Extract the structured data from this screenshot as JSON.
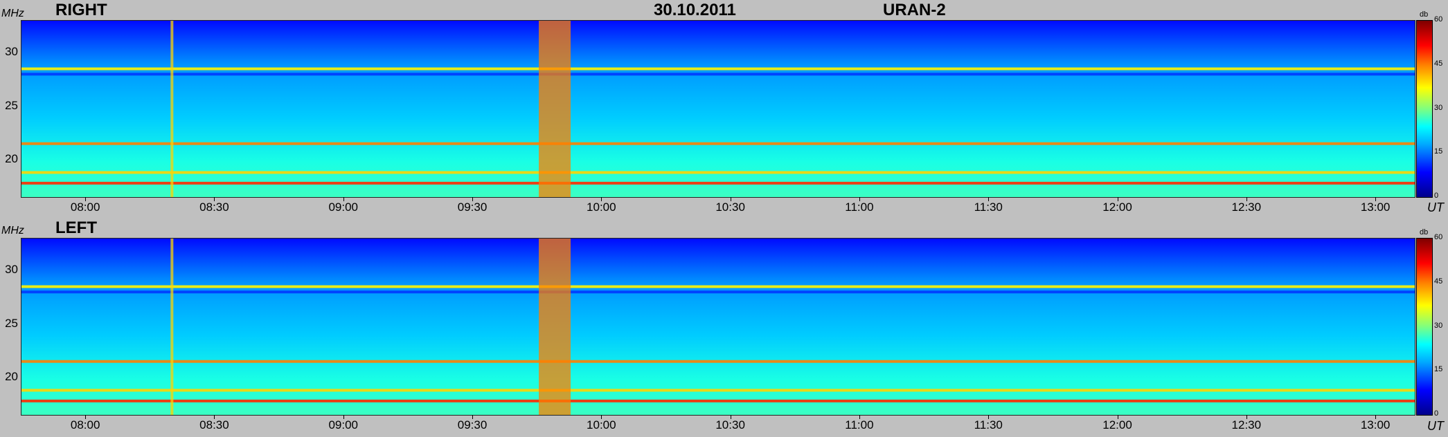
{
  "header": {
    "date": "30.10.2011",
    "instrument": "URAN-2"
  },
  "panels": [
    {
      "polarization": "RIGHT",
      "y_unit": "MHz"
    },
    {
      "polarization": "LEFT",
      "y_unit": "MHz"
    }
  ],
  "x_unit": "UT",
  "colorbar": {
    "unit": "db",
    "ticks": [
      "0",
      "15",
      "30",
      "45",
      "60"
    ],
    "colors": [
      "#00008b",
      "#0000ff",
      "#00aaff",
      "#00ffff",
      "#7fff7f",
      "#ffff00",
      "#ff7f00",
      "#ff0000",
      "#7f0000"
    ]
  },
  "chart_data": [
    {
      "type": "heatmap",
      "title": "RIGHT",
      "ylabel": "MHz",
      "xlabel": "UT",
      "ylim": [
        16.5,
        33
      ],
      "xlim": [
        "07:45",
        "13:09"
      ],
      "yticks": [
        "20",
        "25",
        "30"
      ],
      "xticks": [
        "08:00",
        "08:30",
        "09:00",
        "09:30",
        "10:00",
        "10:30",
        "11:00",
        "11:30",
        "12:00",
        "12:30",
        "13:00"
      ],
      "colorbar_range_db": [
        0,
        60
      ],
      "features": [
        {
          "kind": "horizontal_band",
          "freq_mhz": 28.5,
          "level_db": 38
        },
        {
          "kind": "horizontal_band",
          "freq_mhz": 28.0,
          "level_db": 10
        },
        {
          "kind": "horizontal_band",
          "freq_mhz": 21.5,
          "level_db": 45
        },
        {
          "kind": "horizontal_band",
          "freq_mhz": 18.8,
          "level_db": 40
        },
        {
          "kind": "horizontal_band",
          "freq_mhz": 17.8,
          "level_db": 50
        },
        {
          "kind": "vertical_band",
          "time": "09:49",
          "level_db": 45
        },
        {
          "kind": "vertical_band",
          "time": "08:20",
          "level_db": 40
        }
      ]
    },
    {
      "type": "heatmap",
      "title": "LEFT",
      "ylabel": "MHz",
      "xlabel": "UT",
      "ylim": [
        16.5,
        33
      ],
      "xlim": [
        "07:45",
        "13:09"
      ],
      "yticks": [
        "20",
        "25",
        "30"
      ],
      "xticks": [
        "08:00",
        "08:30",
        "09:00",
        "09:30",
        "10:00",
        "10:30",
        "11:00",
        "11:30",
        "12:00",
        "12:30",
        "13:00"
      ],
      "colorbar_range_db": [
        0,
        60
      ],
      "features": [
        {
          "kind": "horizontal_band",
          "freq_mhz": 28.5,
          "level_db": 38
        },
        {
          "kind": "horizontal_band",
          "freq_mhz": 28.0,
          "level_db": 10
        },
        {
          "kind": "horizontal_band",
          "freq_mhz": 21.5,
          "level_db": 45
        },
        {
          "kind": "horizontal_band",
          "freq_mhz": 18.8,
          "level_db": 40
        },
        {
          "kind": "horizontal_band",
          "freq_mhz": 17.8,
          "level_db": 50
        },
        {
          "kind": "vertical_band",
          "time": "09:49",
          "level_db": 45
        },
        {
          "kind": "vertical_band",
          "time": "08:20",
          "level_db": 40
        }
      ]
    }
  ]
}
